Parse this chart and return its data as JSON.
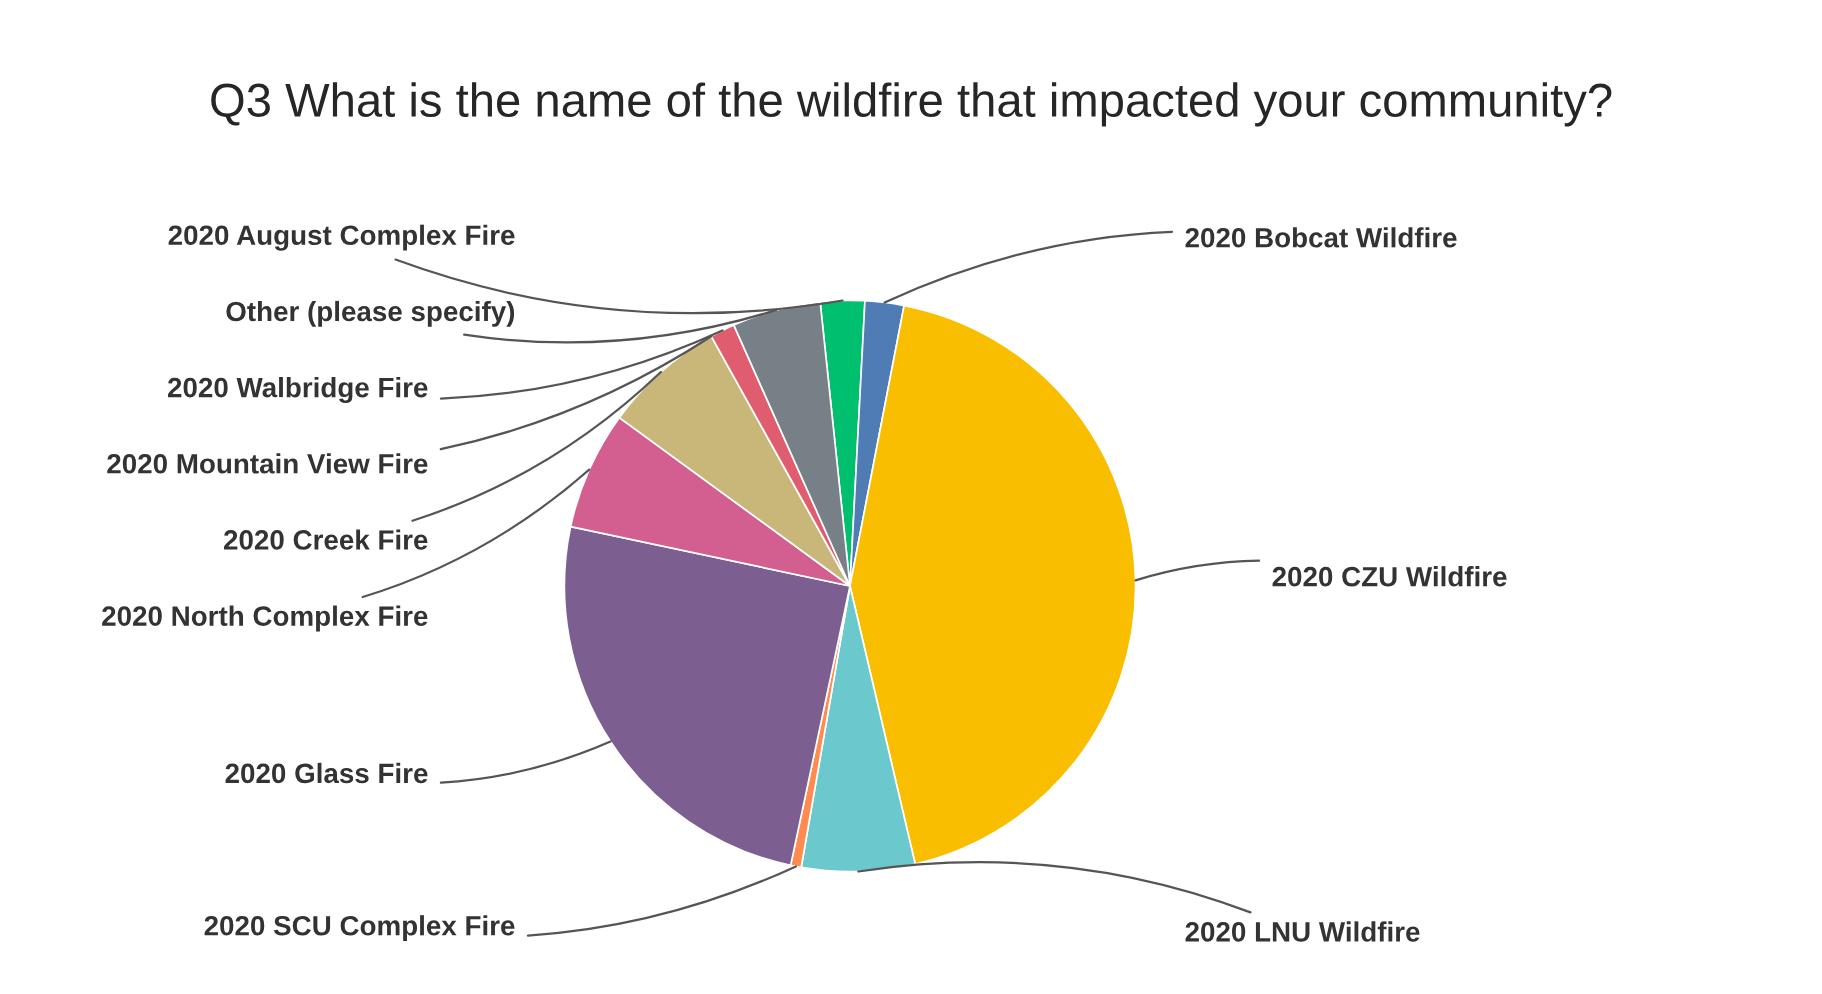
{
  "chart_data": {
    "type": "pie",
    "title": "Q3 What is the name of the wildfire that impacted your community?",
    "categories": [
      "2020 August Complex Fire",
      "2020 Bobcat Wildfire",
      "2020 CZU Wildfire",
      "2020 LNU Wildfire",
      "2020 SCU Complex Fire",
      "2020 Glass Fire",
      "2020 North Complex Fire",
      "2020 Creek Fire",
      "2020 Mountain View Fire",
      "2020 Walbridge Fire",
      "Other (please specify)"
    ],
    "values": [
      2.5,
      2.2,
      43.3,
      6.4,
      0.6,
      25,
      6.7,
      6.9,
      0,
      1.4,
      5.0
    ],
    "colors": [
      "#00bf6f",
      "#507cb6",
      "#f9be00",
      "#6bc8cd",
      "#ff8b4f",
      "#7d5e90",
      "#d25f90",
      "#c9b77a",
      "#3e4a5e",
      "#e05d6f",
      "#768086"
    ]
  }
}
